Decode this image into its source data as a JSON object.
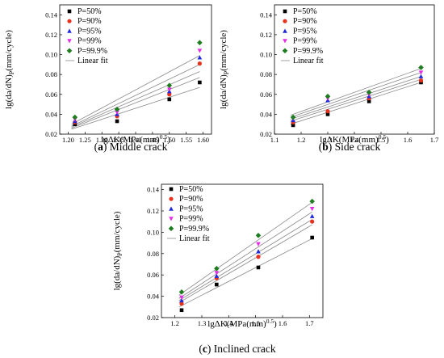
{
  "chart_data": [
    {
      "type": "scatter",
      "panel_label": "(a)",
      "caption": "Middle crack",
      "xlabel": "lgΔK(MPa(mm)0.5)",
      "ylabel": "lg(da/dN)P(mm/cycle)",
      "xlim": [
        1.175,
        1.625
      ],
      "ylim": [
        0.02,
        0.15
      ],
      "xticks": [
        "1.20",
        "1.25",
        "1.30",
        "1.35",
        "1.40",
        "1.45",
        "1.50",
        "1.55",
        "1.60"
      ],
      "yticks": [
        "0.02",
        "0.04",
        "0.06",
        "0.08",
        "0.10",
        "0.12",
        "0.14"
      ],
      "x": [
        1.22,
        1.345,
        1.5,
        1.59
      ],
      "legend_position": "top-left",
      "series": [
        {
          "name": "P=50%",
          "color": "#000000",
          "marker": "square",
          "values": [
            0.03,
            0.033,
            0.055,
            0.072
          ]
        },
        {
          "name": "P=90%",
          "color": "#e8321e",
          "marker": "circle",
          "values": [
            0.032,
            0.038,
            0.06,
            0.091
          ]
        },
        {
          "name": "P=95%",
          "color": "#1e28dc",
          "marker": "triangle-up",
          "values": [
            0.033,
            0.04,
            0.063,
            0.097
          ]
        },
        {
          "name": "P=99%",
          "color": "#e62ce6",
          "marker": "triangle-down",
          "values": [
            0.035,
            0.042,
            0.065,
            0.104
          ]
        },
        {
          "name": "P=99.9%",
          "color": "#1e7d1e",
          "marker": "diamond",
          "values": [
            0.037,
            0.045,
            0.069,
            0.112
          ]
        }
      ],
      "fits": [
        [
          0.025,
          0.067
        ],
        [
          0.026,
          0.077
        ],
        [
          0.027,
          0.083
        ],
        [
          0.028,
          0.09
        ],
        [
          0.03,
          0.099
        ]
      ],
      "fit_label": "Linear fit"
    },
    {
      "type": "scatter",
      "panel_label": "(b)",
      "caption": "Side crack",
      "xlabel": "lgΔK(MPa(mm)0.5)",
      "ylabel": "lg(da/dN)P(mm/cycle)",
      "xlim": [
        1.1,
        1.7
      ],
      "ylim": [
        0.02,
        0.15
      ],
      "xticks": [
        "1.1",
        "1.2",
        "1.3",
        "1.4",
        "1.5",
        "1.6",
        "1.7"
      ],
      "yticks": [
        "0.02",
        "0.04",
        "0.06",
        "0.08",
        "0.10",
        "0.12",
        "0.14"
      ],
      "x": [
        1.17,
        1.3,
        1.455,
        1.65
      ],
      "legend_position": "top-left",
      "series": [
        {
          "name": "P=50%",
          "color": "#000000",
          "marker": "square",
          "values": [
            0.029,
            0.04,
            0.053,
            0.072
          ]
        },
        {
          "name": "P=90%",
          "color": "#e8321e",
          "marker": "circle",
          "values": [
            0.032,
            0.043,
            0.056,
            0.074
          ]
        },
        {
          "name": "P=95%",
          "color": "#1e28dc",
          "marker": "triangle-up",
          "values": [
            0.034,
            0.054,
            0.058,
            0.078
          ]
        },
        {
          "name": "P=99%",
          "color": "#e62ce6",
          "marker": "triangle-down",
          "values": [
            0.036,
            0.056,
            0.06,
            0.082
          ]
        },
        {
          "name": "P=99.9%",
          "color": "#1e7d1e",
          "marker": "diamond",
          "values": [
            0.037,
            0.058,
            0.062,
            0.087
          ]
        }
      ],
      "fits": [
        [
          0.03,
          0.072
        ],
        [
          0.033,
          0.075
        ],
        [
          0.035,
          0.078
        ],
        [
          0.037,
          0.082
        ],
        [
          0.039,
          0.086
        ]
      ],
      "fit_label": "Linear fit"
    },
    {
      "type": "scatter",
      "panel_label": "(c)",
      "caption": "Inclined crack",
      "xlabel": "lgΔK(MPa(mm)0.5)",
      "ylabel": "lg(da/dN)P(mm/cycle)",
      "xlim": [
        1.15,
        1.75
      ],
      "ylim": [
        0.02,
        0.145
      ],
      "xticks": [
        "1.2",
        "1.3",
        "1.4",
        "1.5",
        "1.6",
        "1.7"
      ],
      "yticks": [
        "0.02",
        "0.04",
        "0.06",
        "0.08",
        "0.10",
        "0.12",
        "0.14"
      ],
      "x": [
        1.225,
        1.355,
        1.51,
        1.71
      ],
      "legend_position": "top-left",
      "series": [
        {
          "name": "P=50%",
          "color": "#000000",
          "marker": "square",
          "values": [
            0.027,
            0.051,
            0.067,
            0.095
          ]
        },
        {
          "name": "P=90%",
          "color": "#e8321e",
          "marker": "circle",
          "values": [
            0.033,
            0.057,
            0.077,
            0.11
          ]
        },
        {
          "name": "P=95%",
          "color": "#1e28dc",
          "marker": "triangle-up",
          "values": [
            0.036,
            0.059,
            0.082,
            0.115
          ]
        },
        {
          "name": "P=99%",
          "color": "#e62ce6",
          "marker": "triangle-down",
          "values": [
            0.039,
            0.062,
            0.089,
            0.122
          ]
        },
        {
          "name": "P=99.9%",
          "color": "#1e7d1e",
          "marker": "diamond",
          "values": [
            0.044,
            0.066,
            0.097,
            0.129
          ]
        }
      ],
      "fits": [
        [
          0.03,
          0.094
        ],
        [
          0.034,
          0.107
        ],
        [
          0.036,
          0.112
        ],
        [
          0.038,
          0.119
        ],
        [
          0.041,
          0.128
        ]
      ],
      "fit_label": "Linear fit"
    }
  ]
}
